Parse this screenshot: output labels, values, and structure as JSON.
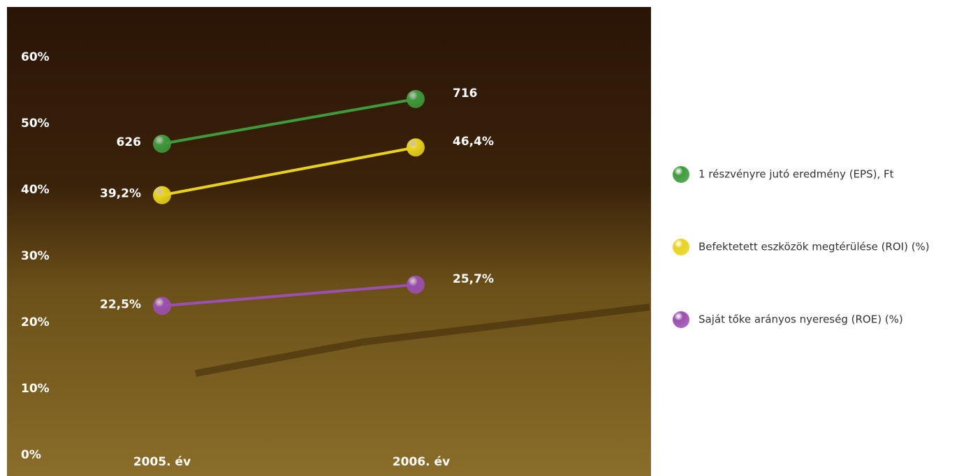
{
  "chart_data": {
    "type": "line",
    "categories": [
      "2005. év",
      "2006. év"
    ],
    "ylim": [
      0,
      60
    ],
    "yticks": [
      {
        "value": 0,
        "label": "0%"
      },
      {
        "value": 10,
        "label": "10%"
      },
      {
        "value": 20,
        "label": "20%"
      },
      {
        "value": 30,
        "label": "30%"
      },
      {
        "value": 40,
        "label": "40%"
      },
      {
        "value": 50,
        "label": "50%"
      },
      {
        "value": 60,
        "label": "60%"
      }
    ],
    "y2lim": [
      0,
      800
    ],
    "series": [
      {
        "name": "1 részvényre jutó eredmény (EPS), Ft",
        "color": "#3f9a3c",
        "axis": "y2",
        "values": [
          626,
          716
        ]
      },
      {
        "name": "Befektetett eszközök megtérülése (ROI) (%)",
        "color": "#e8d21e",
        "values": [
          39.2,
          46.4
        ],
        "value_labels": [
          "39,2%",
          "46,4%"
        ]
      },
      {
        "name": "Saját tőke arányos nyereség (ROE) (%)",
        "color": "#9b4fb0",
        "values": [
          22.5,
          25.7
        ],
        "value_labels": [
          "22,5%",
          "25,7%"
        ]
      }
    ],
    "legend": "right"
  }
}
